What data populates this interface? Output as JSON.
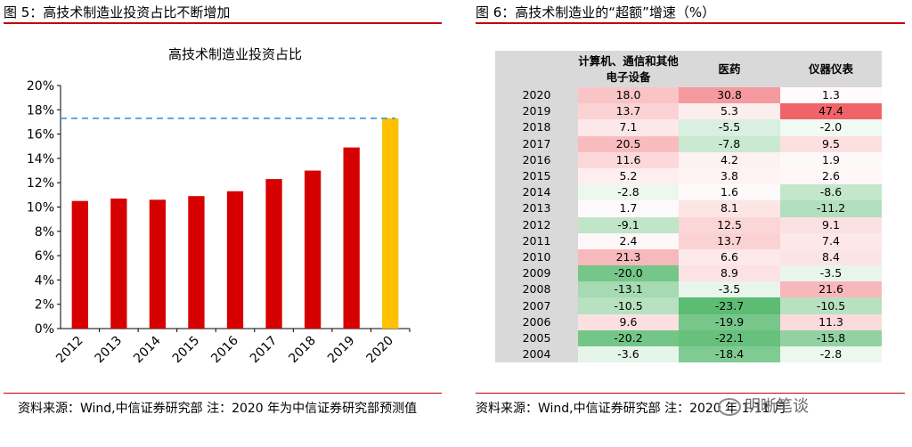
{
  "left": {
    "panel_title": "图 5：高技术制造业投资占比不断增加",
    "source": "资料来源：Wind,中信证券研究部 注：2020 年为中信证券研究部预测值"
  },
  "right": {
    "panel_title": "图 6：高技术制造业的“超额”增速（%）",
    "source": "资料来源：Wind,中信证券研究部 注：2020 年 1-11 月"
  },
  "watermark": "明晰笔谈",
  "colors": {
    "accent": "#c00000",
    "bar": "#d60000",
    "bar_highlight": "#ffc000",
    "dash": "#4f9bd9"
  },
  "chart_data": [
    {
      "type": "bar",
      "title": "高技术制造业投资占比",
      "categories": [
        "2012",
        "2013",
        "2014",
        "2015",
        "2016",
        "2017",
        "2018",
        "2019",
        "2020"
      ],
      "values": [
        10.5,
        10.7,
        10.6,
        10.9,
        11.3,
        12.3,
        13.0,
        14.9,
        17.3
      ],
      "ylim": [
        0,
        20
      ],
      "yticks": [
        "0%",
        "2%",
        "4%",
        "6%",
        "8%",
        "10%",
        "12%",
        "14%",
        "16%",
        "18%",
        "20%"
      ],
      "reference_line": 17.3,
      "highlight_category": "2020",
      "xlabel": "",
      "ylabel": ""
    },
    {
      "type": "heatmap",
      "columns": [
        "计算机、通信和其他电子设备",
        "医药",
        "仪器仪表"
      ],
      "rows": [
        "2020",
        "2019",
        "2018",
        "2017",
        "2016",
        "2015",
        "2014",
        "2013",
        "2012",
        "2011",
        "2010",
        "2009",
        "2008",
        "2007",
        "2006",
        "2005",
        "2004"
      ],
      "values": [
        [
          18.0,
          30.8,
          1.3
        ],
        [
          13.7,
          5.3,
          47.4
        ],
        [
          7.1,
          -5.5,
          -2.0
        ],
        [
          20.5,
          -7.8,
          9.5
        ],
        [
          11.6,
          4.2,
          1.9
        ],
        [
          5.2,
          3.8,
          2.6
        ],
        [
          -2.8,
          1.6,
          -8.6
        ],
        [
          1.7,
          8.1,
          -11.2
        ],
        [
          -9.1,
          12.5,
          9.1
        ],
        [
          2.4,
          13.7,
          7.4
        ],
        [
          21.3,
          6.6,
          8.4
        ],
        [
          -20.0,
          8.9,
          -3.5
        ],
        [
          -13.1,
          -3.5,
          21.6
        ],
        [
          -10.5,
          -23.7,
          -10.5
        ],
        [
          9.6,
          -19.9,
          11.3
        ],
        [
          -20.2,
          -22.1,
          -15.8
        ],
        [
          -3.6,
          -18.4,
          -2.8
        ]
      ]
    }
  ]
}
